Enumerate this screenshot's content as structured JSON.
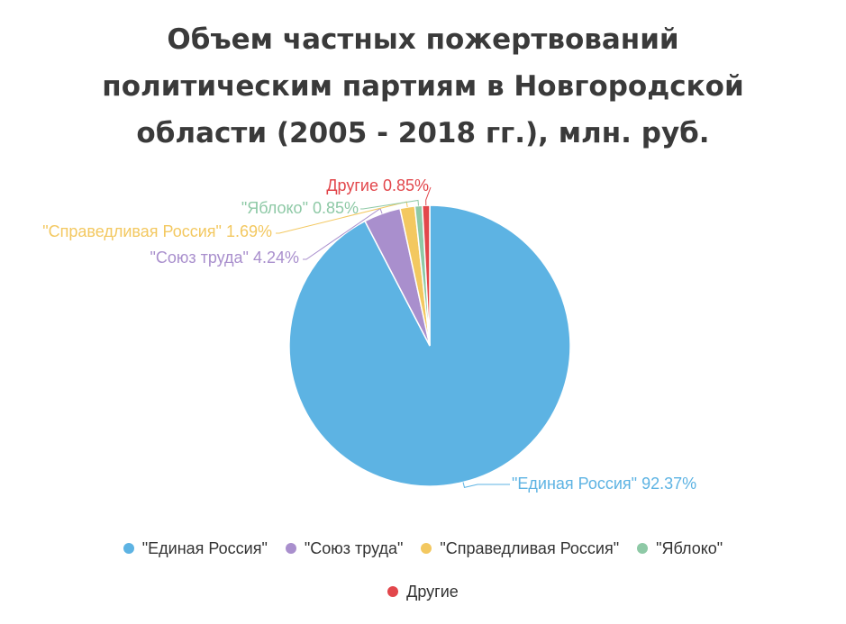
{
  "chart_data": {
    "type": "pie",
    "title_lines": [
      "Объем частных пожертвований",
      "политическим партиям в Новгородской",
      "области (2005 - 2018 гг.), млн. руб."
    ],
    "slices": [
      {
        "name": "\"Единая Россия\"",
        "value": 92.37,
        "label": "\"Единая Россия\" 92.37%",
        "color": "#5db3e3"
      },
      {
        "name": "\"Союз труда\"",
        "value": 4.24,
        "label": "\"Союз труда\" 4.24%",
        "color": "#a98fcd"
      },
      {
        "name": "\"Справедливая Россия\"",
        "value": 1.69,
        "label": "\"Справедливая Россия\" 1.69%",
        "color": "#f3c860"
      },
      {
        "name": "\"Яблоко\"",
        "value": 0.85,
        "label": "\"Яблоко\" 0.85%",
        "color": "#8ec9a6"
      },
      {
        "name": "Другие",
        "value": 0.85,
        "label": "Другие 0.85%",
        "color": "#e2464b"
      }
    ],
    "legend": {
      "position": "bottom",
      "rows": [
        [
          "\"Единая Россия\"",
          "\"Союз труда\"",
          "\"Справедливая Россия\"",
          "\"Яблоко\""
        ],
        [
          "Другие"
        ]
      ]
    }
  }
}
